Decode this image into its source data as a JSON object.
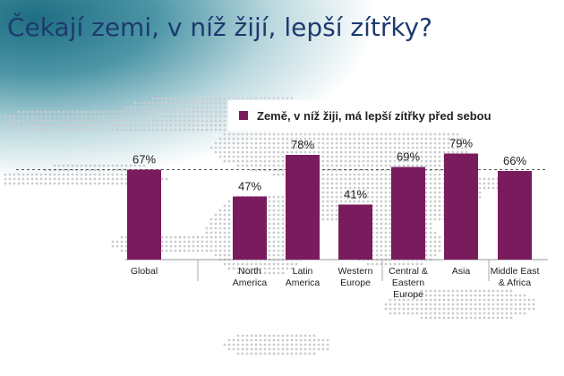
{
  "title": "Čekají zemi, v níž žijí, lepší zítřky?",
  "colors": {
    "bar": "#7a1b5e",
    "title": "#1e3a6e",
    "map_dots": "#c9ccd0"
  },
  "chart_data": {
    "type": "bar",
    "title": "",
    "xlabel": "",
    "ylabel": "",
    "ylim": [
      0,
      100
    ],
    "legend": {
      "position": "top-right",
      "entries": [
        "Země, v níž žiji, má lepší zítřky před sebou"
      ]
    },
    "reference_line": {
      "value": 67,
      "style": "dashed"
    },
    "categories": [
      "Global",
      "North America",
      "Latin America",
      "Western Europe",
      "Central & Eastern Europe",
      "Asia",
      "Middle East & Africa"
    ],
    "category_label_lines": [
      [
        "Global"
      ],
      [
        "North",
        "America"
      ],
      [
        "Latin",
        "America"
      ],
      [
        "Western",
        "Europe"
      ],
      [
        "Central &",
        "Eastern",
        "Europe"
      ],
      [
        "Asia"
      ],
      [
        "Middle East",
        "& Africa"
      ]
    ],
    "series": [
      {
        "name": "Země, v níž žiji, má lepší zítřky před sebou",
        "values": [
          67,
          47,
          78,
          41,
          69,
          79,
          66
        ],
        "labels": [
          "67%",
          "47%",
          "78%",
          "41%",
          "69%",
          "79%",
          "66%"
        ]
      }
    ]
  }
}
